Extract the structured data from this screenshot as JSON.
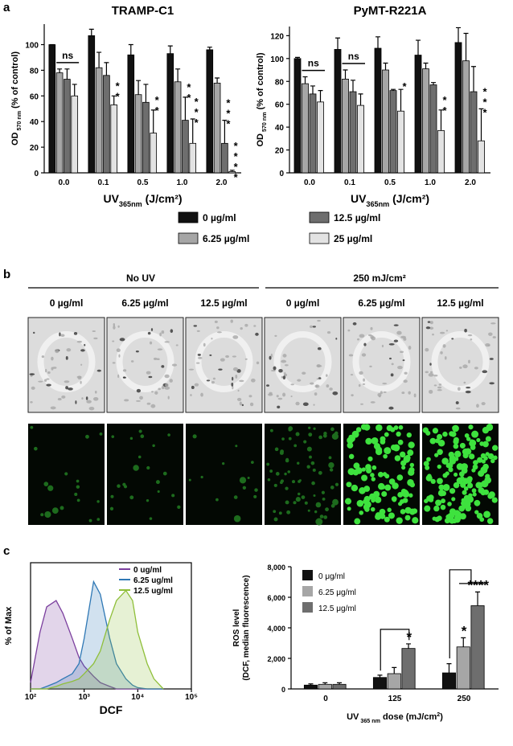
{
  "panel_labels": [
    "a",
    "b",
    "c"
  ],
  "micrographs": {
    "groups": [
      "No UV",
      "250 mJ/cm²"
    ],
    "columns": [
      "0 µg/ml",
      "6.25 µg/ml",
      "12.5 µg/ml",
      "0 µg/ml",
      "6.25 µg/ml",
      "12.5 µg/ml"
    ]
  },
  "chart_data": [
    {
      "type": "bar",
      "title": "TRAMP-C1",
      "ylabel": [
        "OD",
        " 570 nm",
        " (% of control)"
      ],
      "xlabel": [
        "UV",
        "365nm",
        " (J/cm²)"
      ],
      "categories": [
        "0.0",
        "0.1",
        "0.5",
        "1.0",
        "2.0"
      ],
      "series": [
        {
          "name": "0 µg/ml",
          "color": "#111111",
          "values": [
            100,
            107,
            92,
            93,
            96
          ],
          "errors": [
            0,
            5,
            8,
            6,
            2
          ]
        },
        {
          "name": "6.25 µg/ml",
          "color": "#a6a6a6",
          "values": [
            78,
            82,
            61,
            71,
            70
          ],
          "errors": [
            3,
            12,
            11,
            10,
            4
          ]
        },
        {
          "name": "12.5 µg/ml",
          "color": "#6e6e6e",
          "values": [
            73,
            76,
            55,
            41,
            23
          ],
          "errors": [
            8,
            10,
            14,
            18,
            18
          ]
        },
        {
          "name": "25 µg/ml",
          "color": "#e3e3e3",
          "values": [
            60,
            53,
            31,
            23,
            1
          ],
          "errors": [
            9,
            7,
            18,
            19,
            1
          ]
        }
      ],
      "ylim": [
        0,
        116
      ],
      "yticks": [
        0,
        20,
        40,
        60,
        80,
        100
      ],
      "annotations": [
        "ns",
        "**",
        "**",
        "**",
        "***",
        "***",
        "****"
      ]
    },
    {
      "type": "bar",
      "title": "PyMT-R221A",
      "ylabel": [
        "OD",
        " 570 nm",
        " (% of control)"
      ],
      "xlabel": [
        "UV",
        "365nm",
        " (J/cm²)"
      ],
      "categories": [
        "0.0",
        "0.1",
        "0.5",
        "1.0",
        "2.0"
      ],
      "series": [
        {
          "color": "#111111",
          "values": [
            100,
            108,
            109,
            103,
            114
          ],
          "errors": [
            1,
            10,
            10,
            13,
            13
          ]
        },
        {
          "color": "#a6a6a6",
          "values": [
            78,
            82,
            90,
            91,
            98
          ],
          "errors": [
            6,
            8,
            6,
            5,
            24
          ]
        },
        {
          "color": "#6e6e6e",
          "values": [
            69,
            71,
            72,
            77,
            71
          ],
          "errors": [
            7,
            10,
            1,
            2,
            22
          ]
        },
        {
          "color": "#e3e3e3",
          "values": [
            62,
            59,
            54,
            37,
            28
          ],
          "errors": [
            10,
            10,
            19,
            18,
            28
          ]
        }
      ],
      "ylim": [
        0,
        128
      ],
      "yticks": [
        0,
        20,
        40,
        60,
        80,
        100,
        120
      ],
      "annotations": [
        "ns",
        "ns",
        "*",
        "**",
        "***"
      ]
    },
    {
      "type": "line",
      "ylabel": "% of Max",
      "xlabel": "DCF",
      "xscale": "log",
      "legend": "upper right",
      "x": [
        100,
        150,
        200,
        300,
        400,
        600,
        800,
        1000,
        1500,
        2000,
        3000,
        4000,
        6000,
        8000,
        10000,
        15000,
        20000,
        30000
      ],
      "series": [
        {
          "name": "0 ug/ml",
          "color": "#7b3f9e",
          "values": [
            5,
            45,
            65,
            70,
            60,
            40,
            25,
            18,
            10,
            5,
            2,
            0,
            0,
            0,
            0,
            0,
            0,
            0
          ]
        },
        {
          "name": "6.25 ug/ml",
          "color": "#2f78b5",
          "values": [
            0,
            0,
            2,
            5,
            8,
            12,
            20,
            40,
            85,
            75,
            40,
            20,
            8,
            3,
            1,
            0,
            0,
            0
          ]
        },
        {
          "name": "12.5 ug/ml",
          "color": "#8fbf3a",
          "values": [
            0,
            0,
            0,
            2,
            4,
            6,
            8,
            12,
            20,
            30,
            55,
            70,
            78,
            70,
            45,
            20,
            8,
            0
          ]
        }
      ],
      "xlim": [
        100,
        100000
      ],
      "xticks": [
        {
          "value": 100,
          "label": "10²"
        },
        {
          "value": 1000,
          "label": "10³"
        },
        {
          "value": 10000,
          "label": "10⁴"
        },
        {
          "value": 100000,
          "label": "10⁵"
        }
      ],
      "ylim": [
        0,
        100
      ]
    },
    {
      "type": "bar",
      "ylabel": [
        "ROS level",
        "(DCF, median fluorescence)"
      ],
      "xlabel": [
        "UV",
        " 365 nm",
        " dose (mJ/cm",
        "2",
        ")"
      ],
      "categories": [
        "0",
        "125",
        "250"
      ],
      "legend": "upper left",
      "series": [
        {
          "name": "0 μg/ml",
          "color": "#111111",
          "values": [
            250,
            750,
            1050
          ],
          "errors": [
            80,
            150,
            600
          ]
        },
        {
          "name": "6.25 μg/ml",
          "color": "#a6a6a6",
          "values": [
            300,
            1000,
            2750
          ],
          "errors": [
            100,
            400,
            600
          ]
        },
        {
          "name": "12.5 μg/ml",
          "color": "#6e6e6e",
          "values": [
            300,
            2650,
            5450
          ],
          "errors": [
            100,
            300,
            900
          ]
        }
      ],
      "ylim": [
        0,
        8000
      ],
      "yticks": [
        0,
        {
          "value": 2000,
          "label": "2,000"
        },
        {
          "value": 4000,
          "label": "4,000"
        },
        {
          "value": 6000,
          "label": "6,000"
        },
        {
          "value": 8000,
          "label": "8,000"
        }
      ],
      "annotations": [
        "*",
        "*",
        "****"
      ]
    }
  ]
}
